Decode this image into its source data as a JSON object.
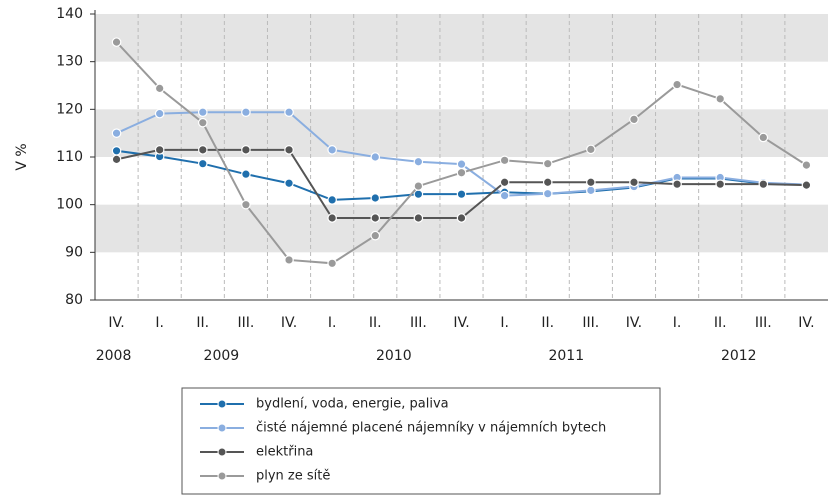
{
  "chart_data": {
    "type": "line",
    "ylabel": "V %",
    "categories": [
      "IV.",
      "I.",
      "II.",
      "III.",
      "IV.",
      "I.",
      "II.",
      "III.",
      "IV.",
      "I.",
      "II.",
      "III.",
      "IV.",
      "I.",
      "II.",
      "III.",
      "IV."
    ],
    "year_labels": [
      "2008",
      "2009",
      "2010",
      "2011",
      "2012"
    ],
    "ylim": [
      80,
      140
    ],
    "yticks": [
      80,
      90,
      100,
      110,
      120,
      130,
      140
    ],
    "grid": "bands",
    "series": [
      {
        "name": "bydlení, voda, energie, paliva",
        "color": "#1f6fad",
        "values": [
          111.3,
          110.1,
          108.6,
          106.4,
          104.5,
          101.0,
          101.4,
          102.2,
          102.2,
          102.6,
          102.3,
          102.8,
          103.6,
          105.5,
          105.5,
          104.4,
          104.2
        ]
      },
      {
        "name": "čisté nájemné placené nájemníky v nájemních bytech",
        "color": "#8aaee0",
        "values": [
          115.0,
          119.1,
          119.4,
          119.4,
          119.4,
          111.5,
          110.0,
          109.0,
          108.5,
          101.9,
          102.3,
          103.0,
          103.8,
          105.7,
          105.7,
          104.6,
          104.2
        ]
      },
      {
        "name": "elektřina",
        "color": "#555555",
        "values": [
          109.5,
          111.5,
          111.5,
          111.5,
          111.5,
          97.2,
          97.2,
          97.2,
          97.2,
          104.7,
          104.7,
          104.7,
          104.7,
          104.3,
          104.3,
          104.3,
          104.1
        ]
      },
      {
        "name": "plyn ze sítě",
        "color": "#9a9a9a",
        "values": [
          134.1,
          124.4,
          117.2,
          100.0,
          88.4,
          87.7,
          93.5,
          103.9,
          106.7,
          109.3,
          108.6,
          111.6,
          117.9,
          125.2,
          122.2,
          114.1,
          108.3
        ]
      }
    ]
  }
}
